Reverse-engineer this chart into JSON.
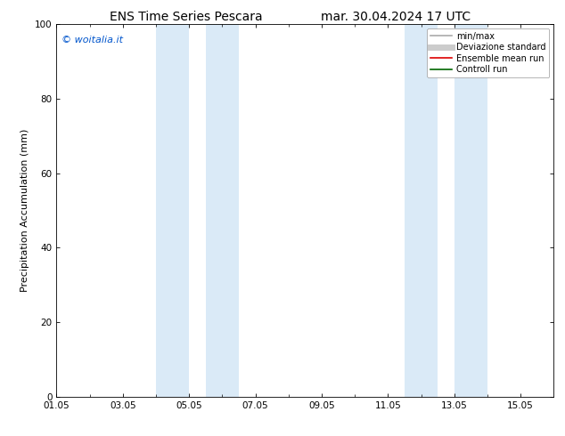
{
  "title": "ENS Time Series Pescara",
  "title2": "mar. 30.04.2024 17 UTC",
  "ylabel": "Precipitation Accumulation (mm)",
  "ylim": [
    0,
    100
  ],
  "yticks": [
    0,
    20,
    40,
    60,
    80,
    100
  ],
  "xtick_labels": [
    "01.05",
    "03.05",
    "05.05",
    "07.05",
    "09.05",
    "11.05",
    "13.05",
    "15.05"
  ],
  "xtick_positions": [
    0,
    2,
    4,
    6,
    8,
    10,
    12,
    14
  ],
  "xlim": [
    0,
    15
  ],
  "shaded_bands": [
    {
      "x_start": 3.0,
      "x_end": 4.0
    },
    {
      "x_start": 4.5,
      "x_end": 5.5
    },
    {
      "x_start": 10.5,
      "x_end": 11.5
    },
    {
      "x_start": 12.0,
      "x_end": 13.0
    }
  ],
  "shade_color": "#daeaf7",
  "watermark_text": "© woitalia.it",
  "watermark_color": "#0055cc",
  "legend_items": [
    {
      "label": "min/max",
      "color": "#aaaaaa",
      "linewidth": 1.2,
      "linestyle": "-"
    },
    {
      "label": "Deviazione standard",
      "color": "#cccccc",
      "linewidth": 5,
      "linestyle": "-"
    },
    {
      "label": "Ensemble mean run",
      "color": "#dd0000",
      "linewidth": 1.2,
      "linestyle": "-"
    },
    {
      "label": "Controll run",
      "color": "#006600",
      "linewidth": 1.2,
      "linestyle": "-"
    }
  ],
  "bg_color": "#ffffff",
  "font_size_title": 10,
  "font_size_axis": 8,
  "font_size_tick": 7.5,
  "font_size_watermark": 8,
  "font_size_legend": 7
}
